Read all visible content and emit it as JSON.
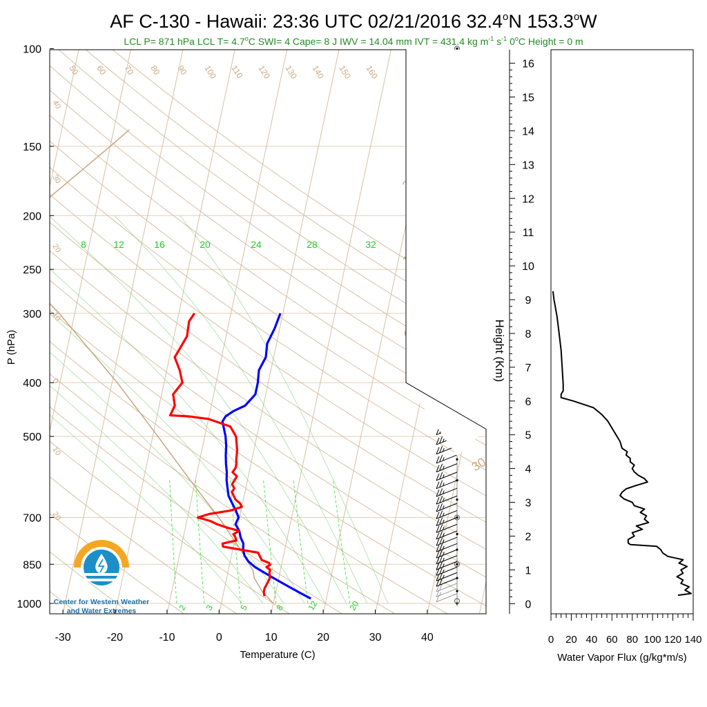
{
  "chart_data": [
    {
      "type": "skew-t",
      "title_main": "AF C-130 - Hawaii: 23:36 UTC 02/21/2016  32.4",
      "title_lat_unit": "N 153.3",
      "title_lon_unit": "W",
      "degree_symbol": "o",
      "subtitle_part1": "LCL P= 871 hPa  LCL T= 4.7",
      "subtitle_part2": "C  SWI= 4  Cape= 8 J  IWV = 14.04 mm  IVT = 431.4 kg m",
      "subtitle_exp1": "-1",
      "subtitle_part3": " s",
      "subtitle_exp2": "-1",
      "subtitle_part4": "  0",
      "subtitle_part5": "C Height = 0 m",
      "xlabel": "Temperature (C)",
      "ylabel": "P (hPa)",
      "y_scale": "log",
      "ylim_hPa": [
        1000,
        100
      ],
      "xlim_C": [
        -34,
        52
      ],
      "xticks": [
        -30,
        -20,
        -10,
        0,
        10,
        20,
        30,
        40
      ],
      "xtick_labels": [
        "-30",
        "-20",
        "-10",
        "0",
        "10",
        "20",
        "30",
        "40"
      ],
      "yticks": [
        1000,
        850,
        700,
        500,
        400,
        300,
        250,
        200,
        150,
        100
      ],
      "ytick_labels": [
        "1000",
        "850",
        "700",
        "500",
        "400",
        "300",
        "250",
        "200",
        "150",
        "100"
      ],
      "isotherm_labels_top": [
        "50",
        "60",
        "70",
        "80",
        "90",
        "100",
        "110",
        "120",
        "130",
        "140",
        "150",
        "160"
      ],
      "isotherm_labels_left": [
        "40",
        "30",
        "20",
        "10",
        "0",
        "10",
        "20"
      ],
      "isotherm_labels_right": [
        "30",
        "20",
        "10",
        "0",
        "10",
        "30"
      ],
      "mixing_ratio_labels_top": [
        "8",
        "12",
        "16",
        "20",
        "24",
        "28",
        "32"
      ],
      "mixing_ratio_labels_bottom": [
        "2",
        "3",
        "5",
        "8",
        "12",
        "20"
      ],
      "colors": {
        "temperature": "#ff0000",
        "dewpoint": "#0000ff",
        "parcel": "#c8a47e",
        "isotherm": "#d7bfa3",
        "isobar": "#e2cfb8",
        "mixing_ratio": "#33dd33",
        "moist_adiabat": "#66cc66",
        "wind_barb": "#000000",
        "label_tan": "#caa882",
        "label_green": "#22cc22",
        "subtitle_green": "#228b22"
      },
      "temperature_profile": {
        "name": "Temperature",
        "p_hPa": [
          970,
          955,
          940,
          920,
          900,
          880,
          870,
          860,
          852,
          845,
          835,
          810,
          790,
          780,
          770,
          760,
          750,
          740,
          730,
          720,
          710,
          700,
          690,
          680,
          670,
          660,
          650,
          640,
          630,
          620,
          610,
          600,
          590,
          580,
          570,
          560,
          550,
          530,
          500,
          480,
          465,
          460,
          458,
          440,
          420,
          400,
          380,
          360,
          350,
          330,
          310,
          300
        ],
        "T_C": [
          8.0,
          7.7,
          7.7,
          8.0,
          8.3,
          8.0,
          8.0,
          7.2,
          7.8,
          7.5,
          6.0,
          5.0,
          -2.0,
          -2.2,
          0.3,
          0.0,
          -0.5,
          0.5,
          -2.0,
          -4.0,
          -5.5,
          -8.0,
          -6.0,
          -2.0,
          0.0,
          -0.5,
          -1.5,
          -2.0,
          -2.5,
          -2.2,
          -2.8,
          -2.5,
          -2.2,
          -3.2,
          -2.8,
          -2.8,
          -3.0,
          -3.2,
          -4.0,
          -5.5,
          -10.0,
          -14.0,
          -17.5,
          -17.0,
          -17.8,
          -16.5,
          -17.5,
          -19.0,
          -18.5,
          -17.5,
          -17.7,
          -17.0
        ]
      },
      "dewpoint_profile": {
        "name": "Dewpoint",
        "p_hPa": [
          980,
          960,
          940,
          920,
          900,
          880,
          860,
          840,
          820,
          800,
          780,
          760,
          740,
          720,
          700,
          680,
          660,
          640,
          620,
          600,
          580,
          560,
          540,
          520,
          500,
          480,
          470,
          460,
          450,
          440,
          420,
          400,
          380,
          360,
          340,
          320,
          300
        ],
        "Td_C": [
          17.0,
          15.0,
          13.0,
          11.0,
          9.0,
          7.0,
          5.0,
          3.5,
          2.5,
          2.0,
          1.8,
          1.0,
          0.5,
          -0.5,
          -0.2,
          -1.0,
          -2.0,
          -3.0,
          -3.5,
          -4.0,
          -4.3,
          -4.8,
          -5.2,
          -5.5,
          -6.0,
          -6.8,
          -7.2,
          -6.8,
          -5.5,
          -3.5,
          -2.0,
          -2.0,
          -2.3,
          -1.5,
          -1.8,
          -1.0,
          -0.5
        ]
      },
      "parcel_profile": {
        "name": "Parcel",
        "p_hPa": [
          1000,
          950,
          900,
          871,
          800,
          700,
          600,
          500,
          400,
          300,
          230,
          200,
          150,
          140
        ],
        "T_C": [
          10.0,
          7.3,
          5.3,
          4.7,
          1.5,
          -4.0,
          -11.0,
          -19.0,
          -29.0,
          -43.0,
          -57.5,
          -53.0,
          -40.0,
          -37.0
        ]
      },
      "wind_barbs": {
        "p_hPa": [
          960,
          940,
          920,
          900,
          880,
          860,
          840,
          820,
          800,
          780,
          760,
          740,
          720,
          700,
          680,
          660,
          640,
          620,
          600,
          580,
          560,
          540,
          520,
          500,
          480,
          460,
          440,
          420,
          400,
          380,
          360,
          340,
          320,
          300
        ],
        "speed_kt": [
          10,
          15,
          20,
          20,
          25,
          25,
          25,
          25,
          25,
          25,
          25,
          25,
          25,
          25,
          25,
          25,
          25,
          25,
          25,
          25,
          25,
          25,
          25,
          25,
          25,
          25,
          25,
          25,
          25,
          25,
          25,
          25,
          25,
          20
        ]
      },
      "height_markers_hPa": [
        1000,
        950,
        900,
        850,
        800,
        750,
        700,
        650,
        600,
        550,
        500,
        450,
        400,
        350,
        300,
        240,
        200,
        150,
        100
      ],
      "height_markers_open_hPa": [
        990,
        850,
        700,
        500,
        400,
        300,
        250,
        200,
        150,
        100
      ]
    },
    {
      "type": "line",
      "xlabel": "Water Vapor Flux (g/kg*m/s)",
      "ylabel": "Height (Km)",
      "xlim": [
        0,
        140
      ],
      "ylim": [
        -0.3,
        16.4
      ],
      "xticks": [
        0,
        20,
        40,
        60,
        80,
        100,
        120,
        140
      ],
      "xtick_labels": [
        "0",
        "20",
        "40",
        "60",
        "80",
        "100",
        "120",
        "140"
      ],
      "yticks": [
        0,
        1,
        2,
        3,
        4,
        5,
        6,
        7,
        8,
        9,
        10,
        11,
        12,
        13,
        14,
        15,
        16
      ],
      "ytick_labels": [
        "0",
        "1",
        "2",
        "3",
        "4",
        "5",
        "6",
        "7",
        "8",
        "9",
        "10",
        "11",
        "12",
        "13",
        "14",
        "15",
        "16"
      ],
      "series": [
        {
          "color": "#000000",
          "height_km": [
            0.25,
            0.3,
            0.4,
            0.5,
            0.6,
            0.7,
            0.8,
            0.9,
            1.0,
            1.1,
            1.2,
            1.3,
            1.4,
            1.5,
            1.6,
            1.7,
            1.75,
            1.8,
            1.9,
            2.0,
            2.1,
            2.2,
            2.3,
            2.4,
            2.5,
            2.6,
            2.7,
            2.8,
            2.9,
            3.0,
            3.1,
            3.2,
            3.3,
            3.4,
            3.5,
            3.6,
            3.7,
            3.8,
            3.9,
            4.0,
            4.1,
            4.2,
            4.3,
            4.4,
            4.5,
            4.6,
            4.8,
            5.0,
            5.2,
            5.4,
            5.6,
            5.8,
            6.0,
            6.1,
            6.2,
            6.3,
            6.5,
            7.0,
            7.5,
            8.0,
            8.5,
            9.0,
            9.25
          ],
          "flux": [
            125,
            138,
            132,
            136,
            128,
            130,
            124,
            130,
            128,
            134,
            126,
            130,
            115,
            110,
            108,
            104,
            78,
            76,
            76,
            82,
            80,
            90,
            84,
            96,
            92,
            94,
            88,
            92,
            82,
            80,
            72,
            68,
            70,
            74,
            84,
            95,
            92,
            86,
            82,
            80,
            82,
            78,
            78,
            74,
            75,
            70,
            68,
            64,
            60,
            56,
            50,
            42,
            22,
            10,
            10,
            12,
            12,
            11,
            10,
            8,
            6,
            3,
            2
          ]
        }
      ]
    }
  ],
  "logo": {
    "line1": "Center for Western Weather",
    "line2": "and Water Extremes"
  }
}
